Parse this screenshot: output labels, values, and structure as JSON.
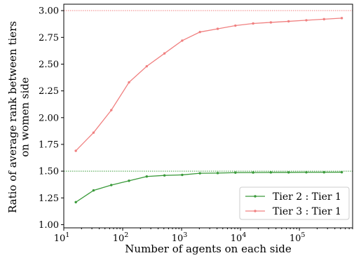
{
  "chart_data": {
    "type": "line",
    "x_scale": "log",
    "xlim": [
      10,
      800000
    ],
    "ylim": [
      0.97,
      3.06
    ],
    "xlabel": "Number of agents on each side",
    "ylabel": "Ratio of average rank between tiers\non women side",
    "x_ticks": [
      {
        "value": 10,
        "base": "10",
        "exp": "1"
      },
      {
        "value": 100,
        "base": "10",
        "exp": "2"
      },
      {
        "value": 1000,
        "base": "10",
        "exp": "3"
      },
      {
        "value": 10000,
        "base": "10",
        "exp": "4"
      },
      {
        "value": 100000,
        "base": "10",
        "exp": "5"
      }
    ],
    "y_ticks": [
      "1.00",
      "1.25",
      "1.50",
      "1.75",
      "2.00",
      "2.25",
      "2.50",
      "2.75",
      "3.00"
    ],
    "grid": false,
    "legend_position": "lower-right",
    "x": [
      16,
      32,
      64,
      128,
      256,
      512,
      1024,
      2048,
      4096,
      8192,
      16384,
      32768,
      65536,
      131072,
      262144,
      524288
    ],
    "series": [
      {
        "name": "Tier 2 : Tier 1",
        "color": "#3a9a3a",
        "values": [
          1.21,
          1.32,
          1.37,
          1.41,
          1.45,
          1.46,
          1.465,
          1.48,
          1.482,
          1.486,
          1.487,
          1.488,
          1.488,
          1.489,
          1.489,
          1.49
        ],
        "reference": 1.5
      },
      {
        "name": "Tier 3 : Tier 1",
        "color": "#f08080",
        "values": [
          1.69,
          1.86,
          2.07,
          2.33,
          2.48,
          2.6,
          2.72,
          2.8,
          2.83,
          2.86,
          2.88,
          2.89,
          2.9,
          2.91,
          2.92,
          2.93
        ],
        "reference": 3.0
      }
    ]
  }
}
